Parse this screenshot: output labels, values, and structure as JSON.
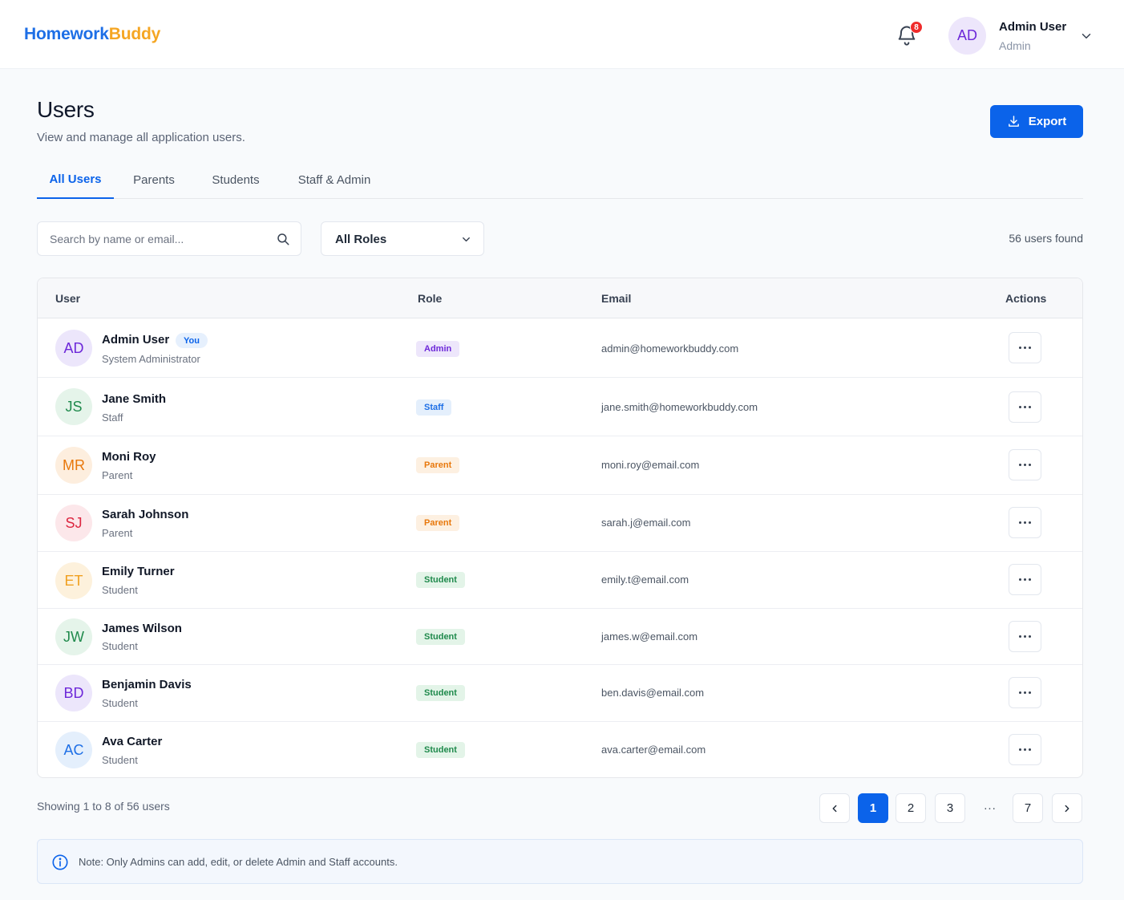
{
  "brand": {
    "part1": "Homework",
    "part2": "Buddy"
  },
  "header": {
    "notification_count": "8",
    "user_initials": "AD",
    "user_name": "Admin User",
    "user_role": "Admin"
  },
  "page": {
    "title": "Users",
    "subtitle": "View and manage all application users.",
    "export_label": "Export"
  },
  "tabs": [
    {
      "label": "All Users",
      "active": true
    },
    {
      "label": "Parents",
      "active": false
    },
    {
      "label": "Students",
      "active": false
    },
    {
      "label": "Staff & Admin",
      "active": false
    }
  ],
  "filters": {
    "search_placeholder": "Search by name or email...",
    "role_value": "All Roles",
    "users_found": "56 users found"
  },
  "table": {
    "headers": {
      "user": "User",
      "role": "Role",
      "email": "Email",
      "actions": "Actions"
    },
    "rows": [
      {
        "initials": "AD",
        "name": "Admin User",
        "sub": "System Administrator",
        "you": "You",
        "role": "Admin",
        "email": "admin@homeworkbuddy.com"
      },
      {
        "initials": "JS",
        "name": "Jane Smith",
        "sub": "Staff",
        "role": "Staff",
        "email": "jane.smith@homeworkbuddy.com"
      },
      {
        "initials": "MR",
        "name": "Moni Roy",
        "sub": "Parent",
        "role": "Parent",
        "email": "moni.roy@email.com"
      },
      {
        "initials": "SJ",
        "name": "Sarah Johnson",
        "sub": "Parent",
        "role": "Parent",
        "email": "sarah.j@email.com"
      },
      {
        "initials": "ET",
        "name": "Emily Turner",
        "sub": "Student",
        "role": "Student",
        "email": "emily.t@email.com"
      },
      {
        "initials": "JW",
        "name": "James Wilson",
        "sub": "Student",
        "role": "Student",
        "email": "james.w@email.com"
      },
      {
        "initials": "BD",
        "name": "Benjamin Davis",
        "sub": "Student",
        "role": "Student",
        "email": "ben.davis@email.com"
      },
      {
        "initials": "AC",
        "name": "Ava Carter",
        "sub": "Student",
        "role": "Student",
        "email": "ava.carter@email.com"
      }
    ]
  },
  "footer": {
    "showing": "Showing 1 to 8 of 56 users",
    "pages": [
      "1",
      "2",
      "3",
      "7"
    ],
    "ellipsis": "...",
    "current_page": "1"
  },
  "note": {
    "text": "Note: Only Admins can add, edit, or delete Admin and Staff accounts."
  },
  "colors": {
    "primary": "#0b63ea",
    "brand_blue": "#1e6fe6",
    "brand_orange": "#f5a623",
    "badge_red": "#ef2b2b"
  }
}
